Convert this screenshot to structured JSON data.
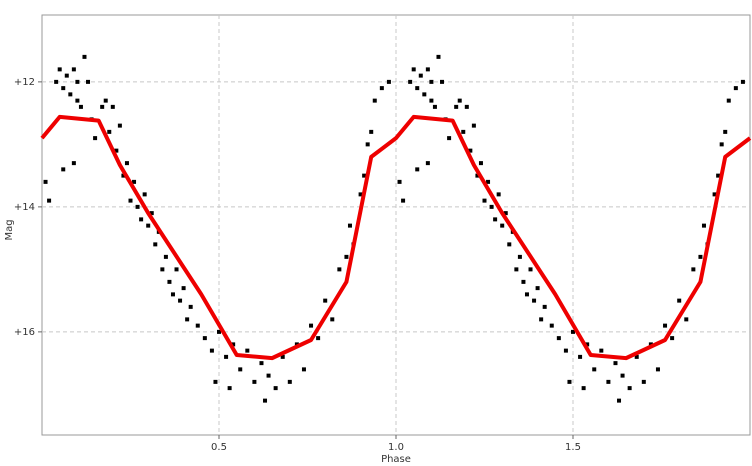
{
  "chart_data": {
    "type": "scatter",
    "x_label": "Phase",
    "y_label": "Mag",
    "xlim": [
      0,
      2
    ],
    "ylim": [
      17.65,
      10.93
    ],
    "xticks": [
      0.5,
      {
        "value": 1,
        "label": "1.0"
      },
      1.5
    ],
    "yticks": [
      {
        "value": 12,
        "label": "+12"
      },
      {
        "value": 14,
        "label": "+14"
      },
      {
        "value": 16,
        "label": "+16"
      }
    ],
    "grid": true,
    "points": {
      "color": "#000000",
      "x": [
        0.01,
        0.02,
        0.04,
        0.05,
        0.06,
        0.06,
        0.07,
        0.08,
        0.09,
        0.09,
        0.1,
        0.1,
        0.11,
        0.12,
        0.13,
        0.14,
        0.15,
        0.17,
        0.18,
        0.19,
        0.2,
        0.21,
        0.22,
        0.23,
        0.24,
        0.25,
        0.26,
        0.27,
        0.28,
        0.29,
        0.3,
        0.31,
        0.32,
        0.33,
        0.34,
        0.35,
        0.36,
        0.37,
        0.38,
        0.39,
        0.4,
        0.41,
        0.42,
        0.44,
        0.46,
        0.48,
        0.49,
        0.5,
        0.52,
        0.53,
        0.54,
        0.56,
        0.58,
        0.6,
        0.62,
        0.63,
        0.64,
        0.66,
        0.68,
        0.7,
        0.72,
        0.74,
        0.76,
        0.78,
        0.8,
        0.82,
        0.84,
        0.86,
        0.87,
        0.88,
        0.9,
        0.91,
        0.92,
        0.93,
        0.94,
        0.96,
        0.98,
        1.01,
        1.02,
        1.04,
        1.05,
        1.06,
        1.06,
        1.07,
        1.08,
        1.09,
        1.09,
        1.1,
        1.1,
        1.11,
        1.12,
        1.13,
        1.14,
        1.15,
        1.17,
        1.18,
        1.19,
        1.2,
        1.21,
        1.22,
        1.23,
        1.24,
        1.25,
        1.26,
        1.27,
        1.28,
        1.29,
        1.3,
        1.31,
        1.32,
        1.33,
        1.34,
        1.35,
        1.36,
        1.37,
        1.38,
        1.39,
        1.4,
        1.41,
        1.42,
        1.44,
        1.46,
        1.48,
        1.49,
        1.5,
        1.52,
        1.53,
        1.54,
        1.56,
        1.58,
        1.6,
        1.62,
        1.63,
        1.64,
        1.66,
        1.68,
        1.7,
        1.72,
        1.74,
        1.76,
        1.78,
        1.8,
        1.82,
        1.84,
        1.86,
        1.87,
        1.88,
        1.9,
        1.91,
        1.92,
        1.93,
        1.94,
        1.96,
        1.98
      ],
      "y": [
        13.6,
        13.9,
        12.0,
        11.8,
        12.1,
        13.4,
        11.9,
        12.2,
        11.8,
        13.3,
        12.0,
        12.3,
        12.4,
        11.6,
        12.0,
        12.6,
        12.9,
        12.4,
        12.3,
        12.8,
        12.4,
        13.1,
        12.7,
        13.5,
        13.3,
        13.9,
        13.6,
        14.0,
        14.2,
        13.8,
        14.3,
        14.1,
        14.6,
        14.4,
        15.0,
        14.8,
        15.2,
        15.4,
        15.0,
        15.5,
        15.3,
        15.8,
        15.6,
        15.9,
        16.1,
        16.3,
        16.8,
        16.0,
        16.4,
        16.9,
        16.2,
        16.6,
        16.3,
        16.8,
        16.5,
        17.1,
        16.7,
        16.9,
        16.4,
        16.8,
        16.2,
        16.6,
        15.9,
        16.1,
        15.5,
        15.8,
        15.0,
        14.8,
        14.3,
        14.6,
        13.8,
        13.5,
        13.0,
        12.8,
        12.3,
        12.1,
        12.0,
        13.6,
        13.9,
        12.0,
        11.8,
        12.1,
        13.4,
        11.9,
        12.2,
        11.8,
        13.3,
        12.0,
        12.3,
        12.4,
        11.6,
        12.0,
        12.6,
        12.9,
        12.4,
        12.3,
        12.8,
        12.4,
        13.1,
        12.7,
        13.5,
        13.3,
        13.9,
        13.6,
        14.0,
        14.2,
        13.8,
        14.3,
        14.1,
        14.6,
        14.4,
        15.0,
        14.8,
        15.2,
        15.4,
        15.0,
        15.5,
        15.3,
        15.8,
        15.6,
        15.9,
        16.1,
        16.3,
        16.8,
        16.0,
        16.4,
        16.9,
        16.2,
        16.6,
        16.3,
        16.8,
        16.5,
        17.1,
        16.7,
        16.9,
        16.4,
        16.8,
        16.2,
        16.6,
        15.9,
        16.1,
        15.5,
        15.8,
        15.0,
        14.8,
        14.3,
        14.6,
        13.8,
        13.5,
        13.0,
        12.8,
        12.3,
        12.1,
        12.0
      ]
    },
    "line": {
      "color": "#ee0000",
      "x": [
        0,
        0.05,
        0.16,
        0.22,
        0.3,
        0.45,
        0.55,
        0.65,
        0.76,
        0.86,
        0.93,
        1.0,
        1.05,
        1.16,
        1.22,
        1.3,
        1.45,
        1.55,
        1.65,
        1.76,
        1.86,
        1.93,
        2.0
      ],
      "y": [
        12.9,
        12.56,
        12.62,
        13.33,
        14.1,
        15.4,
        16.37,
        16.42,
        16.13,
        15.2,
        13.2,
        12.9,
        12.56,
        12.62,
        13.33,
        14.1,
        15.4,
        16.37,
        16.42,
        16.13,
        15.2,
        13.2,
        12.9
      ]
    }
  }
}
